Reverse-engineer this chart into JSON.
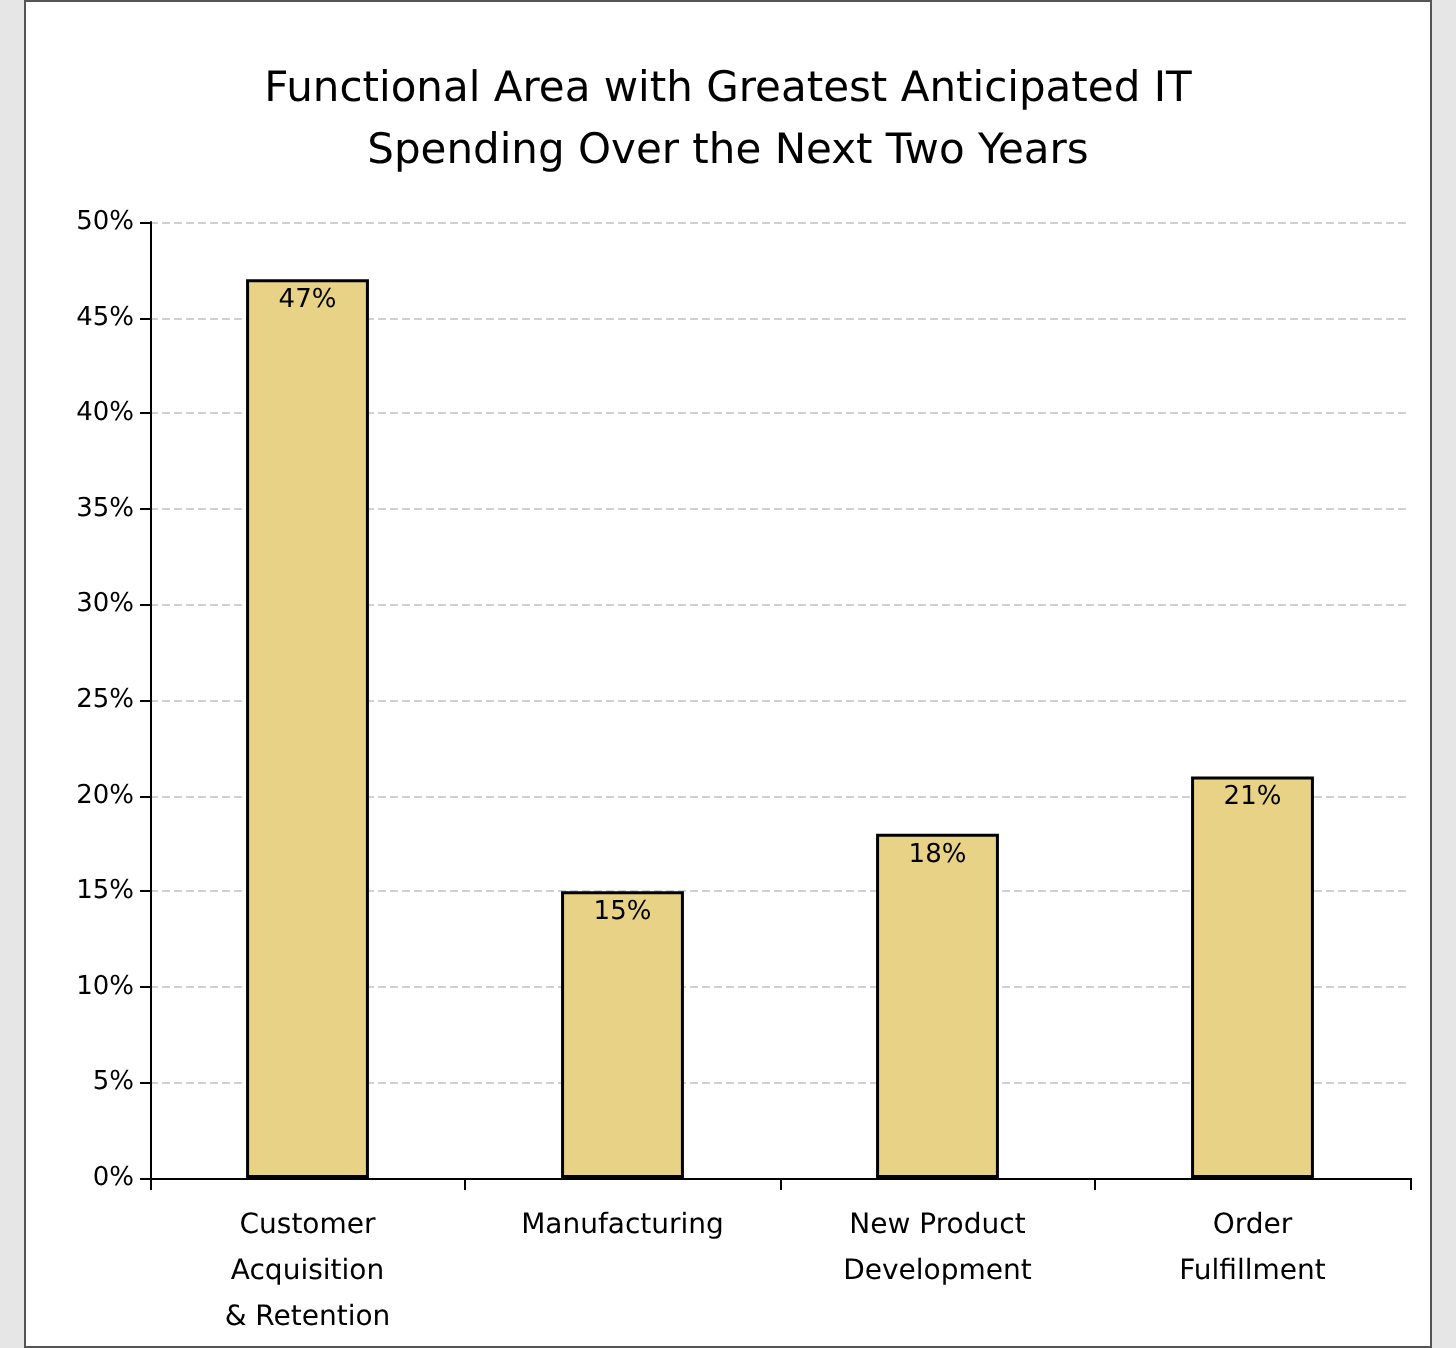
{
  "chart_data": {
    "type": "bar",
    "title": "Functional Area with Greatest Anticipated IT\nSpending Over the Next Two Years",
    "categories": [
      "Customer\nAcquisition\n& Retention",
      "Manufacturing",
      "New Product\nDevelopment",
      "Order\nFulfillment"
    ],
    "values": [
      47,
      15,
      18,
      21
    ],
    "color": "#e8d286",
    "value_labels": [
      "47%",
      "15%",
      "18%",
      "21%"
    ],
    "ylim": [
      0,
      50
    ],
    "yticks": [
      {
        "value": 0,
        "label": "0%"
      },
      {
        "value": 5,
        "label": "5%"
      },
      {
        "value": 10,
        "label": "10%"
      },
      {
        "value": 15,
        "label": "15%"
      },
      {
        "value": 20,
        "label": "20%"
      },
      {
        "value": 25,
        "label": "25%"
      },
      {
        "value": 30,
        "label": "30%"
      },
      {
        "value": 35,
        "label": "35%"
      },
      {
        "value": 40,
        "label": "40%"
      },
      {
        "value": 45,
        "label": "45%"
      },
      {
        "value": 50,
        "label": "50%"
      }
    ],
    "grid": "y"
  }
}
